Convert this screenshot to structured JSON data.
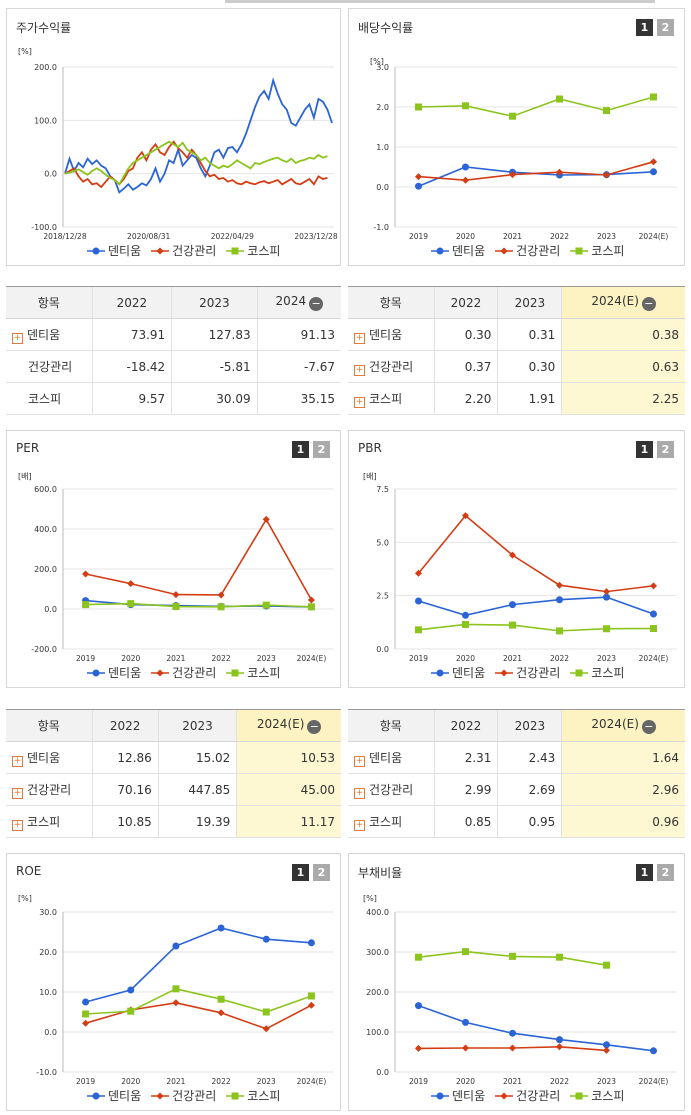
{
  "colors": {
    "dentium": "#2a64d6",
    "health": "#d43d14",
    "kospi": "#8cc41e"
  },
  "legend": {
    "dentium": "덴티움",
    "health": "건강관리",
    "kospi": "코스피"
  },
  "tabs": {
    "t1": "1",
    "t2": "2"
  },
  "table_header": {
    "item": "항목",
    "y2022": "2022",
    "y2023": "2023",
    "y2024": "2024",
    "y2024e": "2024(E)"
  },
  "chart_data": [
    {
      "id": "stock",
      "type": "line",
      "title": "주가수익률",
      "unit": "[%]",
      "ylim": [
        -100,
        200
      ],
      "yticks": [
        "200.0",
        "100.0",
        "0.0",
        "-100.0"
      ],
      "xticks": [
        "2018/12/28",
        "2020/08/31",
        "2022/04/29",
        "2023/12/28"
      ],
      "series": [
        {
          "name": "덴티움",
          "values": [
            0,
            28,
            5,
            20,
            12,
            28,
            18,
            25,
            15,
            10,
            -5,
            -12,
            -35,
            -28,
            -20,
            -30,
            -25,
            -18,
            -22,
            -10,
            10,
            -15,
            0,
            25,
            20,
            45,
            15,
            25,
            35,
            30,
            10,
            -5,
            15,
            40,
            45,
            30,
            48,
            50,
            40,
            55,
            75,
            100,
            125,
            145,
            155,
            140,
            175,
            150,
            130,
            120,
            95,
            90,
            105,
            120,
            130,
            105,
            140,
            135,
            120,
            95
          ],
          "approx": true
        },
        {
          "name": "건강관리",
          "values": [
            0,
            5,
            10,
            -5,
            -15,
            -10,
            -20,
            -18,
            -25,
            -15,
            -5,
            -12,
            -20,
            -10,
            5,
            10,
            30,
            40,
            25,
            45,
            55,
            40,
            35,
            50,
            60,
            48,
            40,
            30,
            45,
            35,
            20,
            5,
            -5,
            -2,
            -10,
            -8,
            -15,
            -12,
            -18,
            -20,
            -15,
            -18,
            -20,
            -16,
            -14,
            -18,
            -15,
            -12,
            -20,
            -15,
            -10,
            -18,
            -20,
            -15,
            -10,
            -20,
            -5,
            -10,
            -8
          ],
          "approx": true
        },
        {
          "name": "코스피",
          "values": [
            0,
            2,
            5,
            8,
            3,
            -2,
            5,
            10,
            5,
            -2,
            -8,
            -12,
            -20,
            -5,
            10,
            20,
            25,
            30,
            35,
            40,
            45,
            50,
            55,
            60,
            55,
            50,
            58,
            45,
            40,
            35,
            25,
            30,
            20,
            15,
            10,
            15,
            12,
            18,
            25,
            20,
            15,
            10,
            20,
            18,
            22,
            25,
            28,
            30,
            25,
            22,
            28,
            20,
            24,
            26,
            30,
            28,
            35,
            30,
            33
          ],
          "approx": true
        }
      ],
      "table": [
        [
          "덴티움",
          "73.91",
          "127.83",
          "91.13"
        ],
        [
          "건강관리",
          "-18.42",
          "-5.81",
          "-7.67"
        ],
        [
          "코스피",
          "9.57",
          "30.09",
          "35.15"
        ]
      ]
    },
    {
      "id": "div",
      "type": "line",
      "title": "배당수익률",
      "unit": "[%]",
      "ylim": [
        -1,
        3
      ],
      "yticks": [
        "3.0",
        "2.0",
        "1.0",
        "0.0",
        "-1.0"
      ],
      "categories": [
        "2019",
        "2020",
        "2021",
        "2022",
        "2023",
        "2024(E)"
      ],
      "series": [
        {
          "name": "덴티움",
          "values": [
            0.02,
            0.5,
            0.37,
            0.3,
            0.31,
            0.38
          ]
        },
        {
          "name": "건강관리",
          "values": [
            0.26,
            0.17,
            0.31,
            0.37,
            0.3,
            0.63
          ]
        },
        {
          "name": "코스피",
          "values": [
            2.0,
            2.03,
            1.77,
            2.2,
            1.91,
            2.25
          ]
        }
      ],
      "table": [
        [
          "덴티움",
          "0.30",
          "0.31",
          "0.38"
        ],
        [
          "건강관리",
          "0.37",
          "0.30",
          "0.63"
        ],
        [
          "코스피",
          "2.20",
          "1.91",
          "2.25"
        ]
      ]
    },
    {
      "id": "per",
      "type": "line",
      "title": "PER",
      "unit": "[배]",
      "ylim": [
        -200,
        600
      ],
      "yticks": [
        "600.0",
        "400.0",
        "200.0",
        "0.0",
        "-200.0"
      ],
      "categories": [
        "2019",
        "2020",
        "2021",
        "2022",
        "2023",
        "2024(E)"
      ],
      "series": [
        {
          "name": "덴티움",
          "values": [
            42,
            22,
            17,
            12.86,
            15.02,
            10.53
          ]
        },
        {
          "name": "건강관리",
          "values": [
            175,
            127,
            72,
            70.16,
            447.85,
            45.0
          ]
        },
        {
          "name": "코스피",
          "values": [
            22,
            27,
            12,
            10.85,
            19.39,
            11.17
          ]
        }
      ],
      "table": [
        [
          "덴티움",
          "12.86",
          "15.02",
          "10.53"
        ],
        [
          "건강관리",
          "70.16",
          "447.85",
          "45.00"
        ],
        [
          "코스피",
          "10.85",
          "19.39",
          "11.17"
        ]
      ]
    },
    {
      "id": "pbr",
      "type": "line",
      "title": "PBR",
      "unit": "[배]",
      "ylim": [
        0,
        7.5
      ],
      "yticks": [
        "7.5",
        "5.0",
        "2.5",
        "0.0"
      ],
      "categories": [
        "2019",
        "2020",
        "2021",
        "2022",
        "2023",
        "2024(E)"
      ],
      "series": [
        {
          "name": "덴티움",
          "values": [
            2.25,
            1.58,
            2.08,
            2.31,
            2.43,
            1.64
          ]
        },
        {
          "name": "건강관리",
          "values": [
            3.55,
            6.25,
            4.4,
            2.99,
            2.69,
            2.96
          ]
        },
        {
          "name": "코스피",
          "values": [
            0.9,
            1.15,
            1.12,
            0.85,
            0.95,
            0.96
          ]
        }
      ],
      "table": [
        [
          "덴티움",
          "2.31",
          "2.43",
          "1.64"
        ],
        [
          "건강관리",
          "2.99",
          "2.69",
          "2.96"
        ],
        [
          "코스피",
          "0.85",
          "0.95",
          "0.96"
        ]
      ]
    },
    {
      "id": "roe",
      "type": "line",
      "title": "ROE",
      "unit": "[%]",
      "ylim": [
        -10,
        30
      ],
      "yticks": [
        "30.0",
        "20.0",
        "10.0",
        "0.0",
        "-10.0"
      ],
      "categories": [
        "2019",
        "2020",
        "2021",
        "2022",
        "2023",
        "2024(E)"
      ],
      "series": [
        {
          "name": "덴티움",
          "values": [
            7.5,
            10.5,
            21.5,
            26.0,
            23.2,
            22.3
          ]
        },
        {
          "name": "건강관리",
          "values": [
            2.2,
            5.5,
            7.3,
            4.8,
            0.8,
            6.7
          ]
        },
        {
          "name": "코스피",
          "values": [
            4.5,
            5.2,
            10.8,
            8.2,
            5.0,
            9.0
          ]
        }
      ]
    },
    {
      "id": "debt",
      "type": "line",
      "title": "부채비율",
      "unit": "[%]",
      "ylim": [
        0,
        400
      ],
      "yticks": [
        "400.0",
        "300.0",
        "200.0",
        "100.0",
        "0.0"
      ],
      "categories": [
        "2019",
        "2020",
        "2021",
        "2022",
        "2023",
        "2024(E)"
      ],
      "series": [
        {
          "name": "덴티움",
          "values": [
            166,
            124,
            97,
            81,
            68,
            53
          ]
        },
        {
          "name": "건강관리",
          "values": [
            59,
            60,
            60,
            63,
            54,
            null
          ]
        },
        {
          "name": "코스피",
          "values": [
            287,
            301,
            289,
            287,
            267,
            null
          ]
        }
      ]
    }
  ]
}
